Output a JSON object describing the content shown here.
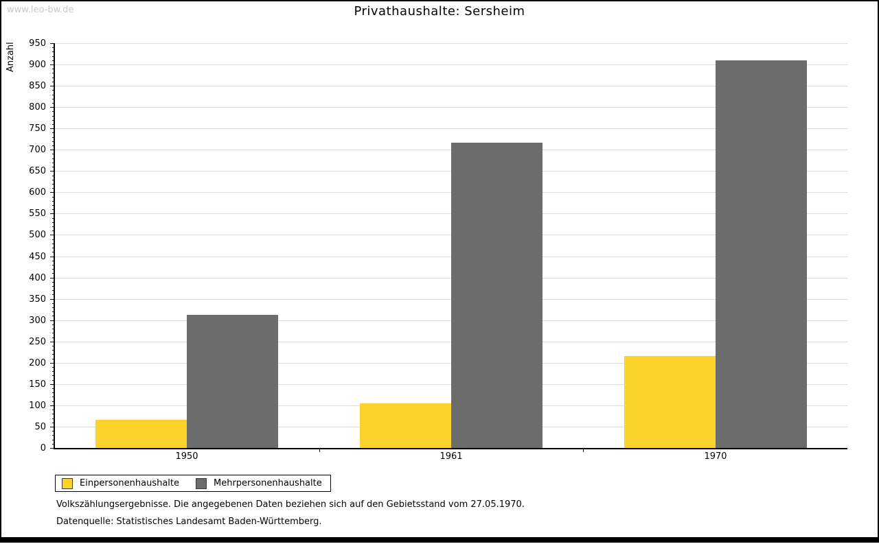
{
  "watermark": "www.leo-bw.de",
  "title": "Privathaushalte: Sersheim",
  "y_axis_label": "Anzahl",
  "legend": {
    "items": [
      {
        "label": "Einpersonenhaushalte",
        "color": "#fcd32d"
      },
      {
        "label": "Mehrpersonenhaushalte",
        "color": "#6c6c6c"
      }
    ]
  },
  "footer": {
    "line1": "Volkszählungsergebnisse. Die angegebenen Daten beziehen sich auf den Gebietsstand vom 27.05.1970.",
    "line2": "Datenquelle: Statistisches Landesamt Baden-Württemberg."
  },
  "chart_data": {
    "type": "bar",
    "title": "Privathaushalte: Sersheim",
    "categories": [
      "1950",
      "1961",
      "1970"
    ],
    "series": [
      {
        "name": "Einpersonenhaushalte",
        "color": "#fcd32d",
        "values": [
          66,
          104,
          216
        ]
      },
      {
        "name": "Mehrpersonenhaushalte",
        "color": "#6c6c6c",
        "values": [
          313,
          717,
          909
        ]
      }
    ],
    "xlabel": "",
    "ylabel": "Anzahl",
    "ylim": [
      0,
      950
    ],
    "ytick_step": 50,
    "yminor_tick_step": 10,
    "grid": true,
    "gridline_color": "#dcdcdc",
    "axis_color": "#000000",
    "legend_position": "bottom-left"
  }
}
